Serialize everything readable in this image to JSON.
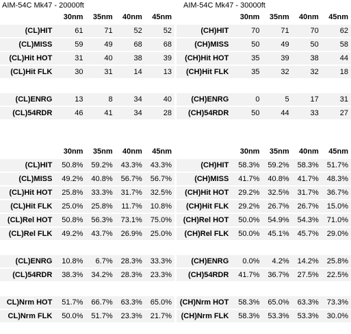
{
  "left_title": "AIM-54C Mk47 - 20000ft",
  "right_title": "AIM-54C Mk47 - 30000ft",
  "ranges": [
    "30nm",
    "35nm",
    "40nm",
    "45nm"
  ],
  "top_left": {
    "group1": [
      {
        "label": "(CL)HIT",
        "values": [
          "61",
          "71",
          "52",
          "52"
        ]
      },
      {
        "label": "(CL)MISS",
        "values": [
          "59",
          "49",
          "68",
          "68"
        ]
      },
      {
        "label": "(CL)Hit HOT",
        "values": [
          "31",
          "40",
          "38",
          "39"
        ]
      },
      {
        "label": "(CL)Hit FLK",
        "values": [
          "30",
          "31",
          "14",
          "13"
        ]
      }
    ],
    "group2": [
      {
        "label": "(CL)ENRG",
        "values": [
          "13",
          "8",
          "34",
          "40"
        ]
      },
      {
        "label": "(CL)54RDR",
        "values": [
          "46",
          "41",
          "34",
          "28"
        ]
      }
    ]
  },
  "top_right": {
    "group1": [
      {
        "label": "(CH)HIT",
        "values": [
          "70",
          "71",
          "70",
          "62"
        ]
      },
      {
        "label": "(CH)MISS",
        "values": [
          "50",
          "49",
          "50",
          "58"
        ]
      },
      {
        "label": "(CH)Hit HOT",
        "values": [
          "35",
          "39",
          "38",
          "44"
        ]
      },
      {
        "label": "(CH)Hit FLK",
        "values": [
          "35",
          "32",
          "32",
          "18"
        ]
      }
    ],
    "group2": [
      {
        "label": "(CH)ENRG",
        "values": [
          "0",
          "5",
          "17",
          "31"
        ]
      },
      {
        "label": "(CH)54RDR",
        "values": [
          "50",
          "44",
          "33",
          "27"
        ]
      }
    ]
  },
  "pct_left": {
    "group1": [
      {
        "label": "(CL)HIT",
        "values": [
          "50.8%",
          "59.2%",
          "43.3%",
          "43.3%"
        ]
      },
      {
        "label": "(CL)MISS",
        "values": [
          "49.2%",
          "40.8%",
          "56.7%",
          "56.7%"
        ]
      },
      {
        "label": "(CL)Hit HOT",
        "values": [
          "25.8%",
          "33.3%",
          "31.7%",
          "32.5%"
        ]
      },
      {
        "label": "(CL)Hit FLK",
        "values": [
          "25.0%",
          "25.8%",
          "11.7%",
          "10.8%"
        ]
      },
      {
        "label": "(CL)Rel HOT",
        "values": [
          "50.8%",
          "56.3%",
          "73.1%",
          "75.0%"
        ]
      },
      {
        "label": "(CL)Rel FLK",
        "values": [
          "49.2%",
          "43.7%",
          "26.9%",
          "25.0%"
        ]
      }
    ],
    "group2": [
      {
        "label": "(CL)ENRG",
        "values": [
          "10.8%",
          "6.7%",
          "28.3%",
          "33.3%"
        ]
      },
      {
        "label": "(CL)54RDR",
        "values": [
          "38.3%",
          "34.2%",
          "28.3%",
          "23.3%"
        ]
      }
    ],
    "group3": [
      {
        "label": "CL)Nrm HOT",
        "values": [
          "51.7%",
          "66.7%",
          "63.3%",
          "65.0%"
        ]
      },
      {
        "label": "CL)Nrm FLK",
        "values": [
          "50.0%",
          "51.7%",
          "23.3%",
          "21.7%"
        ]
      }
    ]
  },
  "pct_right": {
    "group1": [
      {
        "label": "(CH)HIT",
        "values": [
          "58.3%",
          "59.2%",
          "58.3%",
          "51.7%"
        ]
      },
      {
        "label": "(CH)MISS",
        "values": [
          "41.7%",
          "40.8%",
          "41.7%",
          "48.3%"
        ]
      },
      {
        "label": "(CH)Hit HOT",
        "values": [
          "29.2%",
          "32.5%",
          "31.7%",
          "36.7%"
        ]
      },
      {
        "label": "(CH)Hit FLK",
        "values": [
          "29.2%",
          "26.7%",
          "26.7%",
          "15.0%"
        ]
      },
      {
        "label": "(CH)Rel HOT",
        "values": [
          "50.0%",
          "54.9%",
          "54.3%",
          "71.0%"
        ]
      },
      {
        "label": "(CH)Rel FLK",
        "values": [
          "50.0%",
          "45.1%",
          "45.7%",
          "29.0%"
        ]
      }
    ],
    "group2": [
      {
        "label": "(CH)ENRG",
        "values": [
          "0.0%",
          "4.2%",
          "14.2%",
          "25.8%"
        ]
      },
      {
        "label": "(CH)54RDR",
        "values": [
          "41.7%",
          "36.7%",
          "27.5%",
          "22.5%"
        ]
      }
    ],
    "group3": [
      {
        "label": "(CH)Nrm HOT",
        "values": [
          "58.3%",
          "65.0%",
          "63.3%",
          "73.3%"
        ]
      },
      {
        "label": "(CH)Nrm FLK",
        "values": [
          "58.3%",
          "53.3%",
          "53.3%",
          "30.0%"
        ]
      }
    ]
  }
}
